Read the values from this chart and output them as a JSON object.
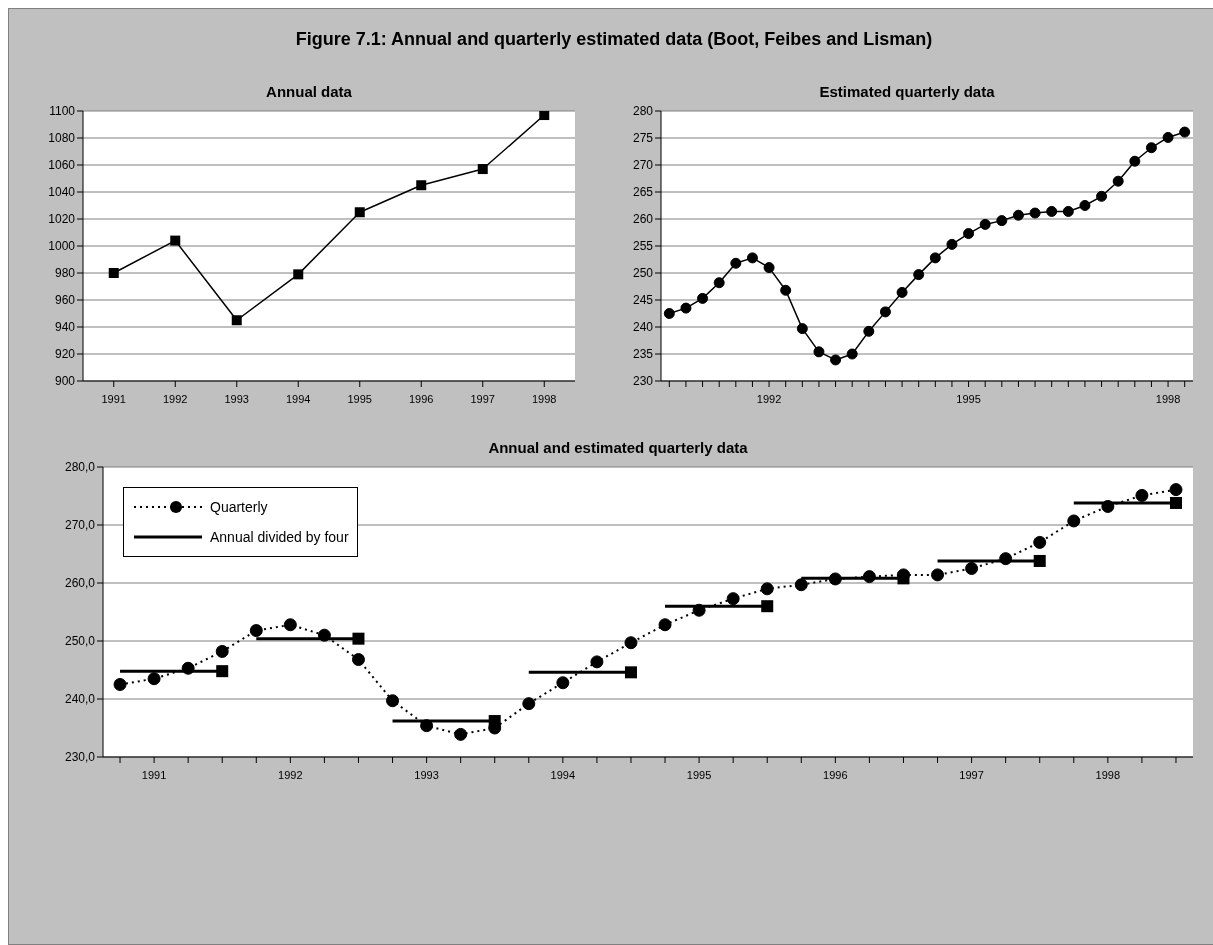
{
  "chart_data": [
    {
      "type": "line",
      "title": "Annual data",
      "annotations": [
        "Figure 7.1: Annual and quarterly estimated data (Boot, Feibes and Lisman)"
      ],
      "categories": [
        "1991",
        "1992",
        "1993",
        "1994",
        "1995",
        "1996",
        "1997",
        "1998"
      ],
      "series": [
        {
          "color": "#000000",
          "values": [
            980,
            1004,
            945,
            979,
            1025,
            1045,
            1057,
            1097
          ]
        }
      ],
      "ylim": [
        900,
        1100
      ],
      "yticks": [
        900,
        920,
        940,
        960,
        980,
        1000,
        1020,
        1040,
        1060,
        1080,
        1100
      ],
      "grid": "y",
      "marker": "square",
      "line_style": "solid"
    },
    {
      "type": "line",
      "title": "Estimated quarterly data",
      "categories": [
        null,
        null,
        null,
        null,
        null,
        null,
        "1992",
        null,
        null,
        null,
        null,
        null,
        null,
        null,
        null,
        null,
        null,
        null,
        "1995",
        null,
        null,
        null,
        null,
        null,
        null,
        null,
        null,
        null,
        null,
        null,
        "1998",
        null
      ],
      "series": [
        {
          "color": "#000000",
          "values": [
            242.5,
            243.5,
            245.3,
            248.2,
            251.8,
            252.8,
            251.0,
            246.8,
            239.7,
            235.4,
            233.9,
            235.0,
            239.2,
            242.8,
            246.4,
            249.7,
            252.8,
            255.3,
            257.3,
            259.0,
            259.7,
            260.7,
            261.1,
            261.4,
            261.4,
            262.5,
            264.2,
            267.0,
            270.7,
            273.2,
            275.1,
            276.1
          ]
        }
      ],
      "ylim": [
        230,
        280
      ],
      "yticks": [
        230,
        235,
        240,
        245,
        250,
        255,
        260,
        265,
        270,
        275,
        280
      ],
      "grid": "y",
      "marker": "circle",
      "line_style": "solid"
    },
    {
      "type": "line",
      "title": "Annual and estimated quarterly data",
      "categories": [
        null,
        "1991",
        null,
        null,
        null,
        "1992",
        null,
        null,
        null,
        "1993",
        null,
        null,
        null,
        "1994",
        null,
        null,
        null,
        "1995",
        null,
        null,
        null,
        "1996",
        null,
        null,
        null,
        "1997",
        null,
        null,
        null,
        "1998",
        null,
        null
      ],
      "series": [
        {
          "name": "Quarterly",
          "color": "#000000",
          "line_style": "dotted",
          "marker": "circle",
          "values": [
            242.5,
            243.5,
            245.3,
            248.2,
            251.8,
            252.8,
            251.0,
            246.8,
            239.7,
            235.4,
            233.9,
            235.0,
            239.2,
            242.8,
            246.4,
            249.7,
            252.8,
            255.3,
            257.3,
            259.0,
            259.7,
            260.7,
            261.1,
            261.4,
            261.4,
            262.5,
            264.2,
            267.0,
            270.7,
            273.2,
            275.1,
            276.1
          ]
        },
        {
          "name": "Annual divided by four",
          "color": "#000000",
          "line_style": "solid",
          "marker": "none",
          "values": [
            244.8,
            244.8,
            244.8,
            244.8,
            null,
            null,
            null,
            null,
            null,
            null,
            null,
            null,
            null,
            null,
            null,
            null,
            null,
            null,
            null,
            null,
            null,
            null,
            null,
            null,
            null,
            null,
            null,
            null,
            null,
            null,
            null,
            null
          ]
        },
        {
          "color": "#000000",
          "line_style": "solid",
          "marker": "none",
          "values": [
            null,
            null,
            null,
            null,
            250.4,
            250.4,
            250.4,
            250.4,
            null,
            null,
            null,
            null,
            null,
            null,
            null,
            null,
            null,
            null,
            null,
            null,
            null,
            null,
            null,
            null,
            null,
            null,
            null,
            null,
            null,
            null,
            null,
            null
          ]
        },
        {
          "color": "#000000",
          "line_style": "solid",
          "marker": "none",
          "values": [
            null,
            null,
            null,
            null,
            null,
            null,
            null,
            null,
            236.2,
            236.2,
            236.2,
            236.2,
            null,
            null,
            null,
            null,
            null,
            null,
            null,
            null,
            null,
            null,
            null,
            null,
            null,
            null,
            null,
            null,
            null,
            null,
            null,
            null
          ]
        },
        {
          "color": "#000000",
          "line_style": "solid",
          "marker": "none",
          "values": [
            null,
            null,
            null,
            null,
            null,
            null,
            null,
            null,
            null,
            null,
            null,
            null,
            244.6,
            244.6,
            244.6,
            244.6,
            null,
            null,
            null,
            null,
            null,
            null,
            null,
            null,
            null,
            null,
            null,
            null,
            null,
            null,
            null,
            null
          ]
        },
        {
          "color": "#000000",
          "line_style": "solid",
          "marker": "none",
          "values": [
            null,
            null,
            null,
            null,
            null,
            null,
            null,
            null,
            null,
            null,
            null,
            null,
            null,
            null,
            null,
            null,
            256.0,
            256.0,
            256.0,
            256.0,
            null,
            null,
            null,
            null,
            null,
            null,
            null,
            null,
            null,
            null,
            null,
            null
          ]
        },
        {
          "color": "#000000",
          "line_style": "solid",
          "marker": "none",
          "values": [
            null,
            null,
            null,
            null,
            null,
            null,
            null,
            null,
            null,
            null,
            null,
            null,
            null,
            null,
            null,
            null,
            null,
            null,
            null,
            null,
            260.8,
            260.8,
            260.8,
            260.8,
            null,
            null,
            null,
            null,
            null,
            null,
            null,
            null
          ]
        },
        {
          "color": "#000000",
          "line_style": "solid",
          "marker": "none",
          "values": [
            null,
            null,
            null,
            null,
            null,
            null,
            null,
            null,
            null,
            null,
            null,
            null,
            null,
            null,
            null,
            null,
            null,
            null,
            null,
            null,
            null,
            null,
            null,
            null,
            263.8,
            263.8,
            263.8,
            263.8,
            null,
            null,
            null,
            null
          ]
        },
        {
          "color": "#000000",
          "line_style": "solid",
          "marker": "none",
          "values": [
            null,
            null,
            null,
            null,
            null,
            null,
            null,
            null,
            null,
            null,
            null,
            null,
            null,
            null,
            null,
            null,
            null,
            null,
            null,
            null,
            null,
            null,
            null,
            null,
            null,
            null,
            null,
            null,
            273.8,
            273.8,
            273.8,
            273.8
          ]
        },
        {
          "type": "scatter",
          "color": "#000000",
          "marker": "square",
          "values": [
            null,
            null,
            null,
            244.8,
            null,
            null,
            null,
            250.4,
            null,
            null,
            null,
            236.2,
            null,
            null,
            null,
            244.6,
            null,
            null,
            null,
            256.0,
            null,
            null,
            null,
            260.8,
            null,
            null,
            null,
            263.8,
            null,
            null,
            null,
            273.8
          ]
        }
      ],
      "ylim": [
        230,
        280
      ],
      "yticks": [
        {
          "value": 230,
          "label": "230,0"
        },
        {
          "value": 240,
          "label": "240,0"
        },
        {
          "value": 250,
          "label": "250,0"
        },
        {
          "value": 260,
          "label": "260,0"
        },
        {
          "value": 270,
          "label": "270,0"
        },
        {
          "value": 280,
          "label": "280,0"
        }
      ],
      "grid": "y",
      "legend": "top left"
    }
  ]
}
